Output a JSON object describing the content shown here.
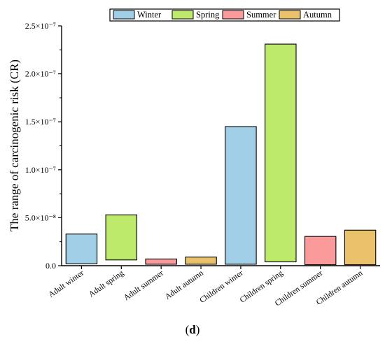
{
  "chart_data": {
    "type": "bar",
    "ylabel": "The range of carcinogenic risk (CR)",
    "xlabel": "",
    "ylim": [
      0,
      2.5e-07
    ],
    "y_ticks": [
      {
        "value": 0,
        "label": "0.0"
      },
      {
        "value": 5e-08,
        "label": "5.0×10⁻⁸"
      },
      {
        "value": 1e-07,
        "label": "1.0×10⁻⁷"
      },
      {
        "value": 1.5e-07,
        "label": "1.5×10⁻⁷"
      },
      {
        "value": 2e-07,
        "label": "2.0×10⁻⁷"
      },
      {
        "value": 2.5e-07,
        "label": "2.5×10⁻⁷"
      }
    ],
    "legend_position": "top-right",
    "legend": [
      {
        "name": "Winter",
        "color": "#9fcee6"
      },
      {
        "name": "Spring",
        "color": "#bdea6a"
      },
      {
        "name": "Summer",
        "color": "#fa9a9b"
      },
      {
        "name": "Autumn",
        "color": "#e8c16a"
      }
    ],
    "bars": [
      {
        "category": "Adult winter",
        "season": "Winter",
        "low": 2e-09,
        "high": 3.3e-08
      },
      {
        "category": "Adult spring",
        "season": "Spring",
        "low": 6e-09,
        "high": 5.3e-08
      },
      {
        "category": "Adult summer",
        "season": "Summer",
        "low": 1.5e-09,
        "high": 7e-09
      },
      {
        "category": "Adult autumn",
        "season": "Autumn",
        "low": 1.5e-09,
        "high": 9e-09
      },
      {
        "category": "Children winter",
        "season": "Winter",
        "low": 1.5e-09,
        "high": 1.45e-07
      },
      {
        "category": "Children spring",
        "season": "Spring",
        "low": 4e-09,
        "high": 2.31e-07
      },
      {
        "category": "Children summer",
        "season": "Summer",
        "low": 1e-09,
        "high": 3.05e-08
      },
      {
        "category": "Children autumn",
        "season": "Autumn",
        "low": 1e-09,
        "high": 3.7e-08
      }
    ],
    "grid": false
  },
  "caption": {
    "open": "(",
    "letter": "d",
    "close": ")"
  }
}
